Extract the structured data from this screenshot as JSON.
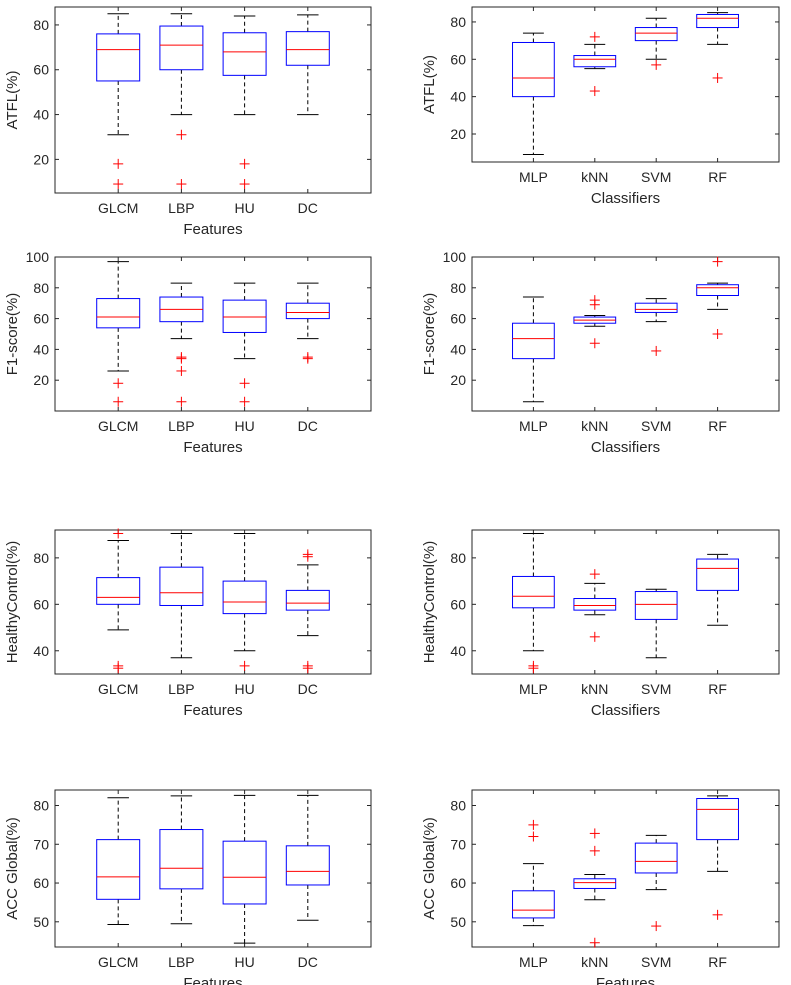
{
  "chart_data": [
    {
      "type": "box",
      "xlabel": "Features",
      "ylabel": "ATFL(%)",
      "ylim": [
        5,
        88
      ],
      "yticks": [
        20,
        40,
        60,
        80
      ],
      "categories": [
        "GLCM",
        "LBP",
        "HU",
        "DC"
      ],
      "boxes": [
        {
          "whisker_low": 31,
          "q1": 55,
          "median": 69,
          "q3": 76,
          "whisker_high": 85,
          "outliers": [
            18,
            9
          ]
        },
        {
          "whisker_low": 40,
          "q1": 60,
          "median": 71,
          "q3": 79.5,
          "whisker_high": 85,
          "outliers": [
            31,
            9
          ]
        },
        {
          "whisker_low": 40,
          "q1": 57.5,
          "median": 68,
          "q3": 76.5,
          "whisker_high": 84,
          "outliers": [
            18,
            9
          ]
        },
        {
          "whisker_low": 40,
          "q1": 62,
          "median": 69,
          "q3": 77,
          "whisker_high": 84.5,
          "outliers": []
        }
      ]
    },
    {
      "type": "box",
      "xlabel": "Classifiers",
      "ylabel": "ATFL(%)",
      "ylim": [
        5,
        88
      ],
      "yticks": [
        20,
        40,
        60,
        80
      ],
      "categories": [
        "MLP",
        "kNN",
        "SVM",
        "RF"
      ],
      "boxes": [
        {
          "whisker_low": 9,
          "q1": 40,
          "median": 50,
          "q3": 69,
          "whisker_high": 74,
          "outliers": []
        },
        {
          "whisker_low": 55,
          "q1": 56,
          "median": 60,
          "q3": 62,
          "whisker_high": 68,
          "outliers": [
            72,
            43
          ]
        },
        {
          "whisker_low": 60,
          "q1": 70,
          "median": 74,
          "q3": 77,
          "whisker_high": 82,
          "outliers": [
            57
          ]
        },
        {
          "whisker_low": 68,
          "q1": 77,
          "median": 82,
          "q3": 84,
          "whisker_high": 85,
          "outliers": [
            50
          ]
        }
      ]
    },
    {
      "type": "box",
      "xlabel": "Features",
      "ylabel": "F1-score(%)",
      "ylim": [
        0,
        100
      ],
      "yticks": [
        20,
        40,
        60,
        80,
        100
      ],
      "categories": [
        "GLCM",
        "LBP",
        "HU",
        "DC"
      ],
      "boxes": [
        {
          "whisker_low": 26,
          "q1": 54,
          "median": 61,
          "q3": 73,
          "whisker_high": 97,
          "outliers": [
            18,
            6
          ]
        },
        {
          "whisker_low": 47,
          "q1": 58,
          "median": 66,
          "q3": 74,
          "whisker_high": 83,
          "outliers": [
            35,
            34,
            26,
            6
          ]
        },
        {
          "whisker_low": 34,
          "q1": 51,
          "median": 61,
          "q3": 72,
          "whisker_high": 83,
          "outliers": [
            18,
            6
          ]
        },
        {
          "whisker_low": 47,
          "q1": 60,
          "median": 64,
          "q3": 70,
          "whisker_high": 83,
          "outliers": [
            35,
            34
          ]
        }
      ]
    },
    {
      "type": "box",
      "xlabel": "Classifiers",
      "ylabel": "F1-score(%)",
      "ylim": [
        0,
        100
      ],
      "yticks": [
        20,
        40,
        60,
        80,
        100
      ],
      "categories": [
        "MLP",
        "kNN",
        "SVM",
        "RF"
      ],
      "boxes": [
        {
          "whisker_low": 6,
          "q1": 34,
          "median": 47,
          "q3": 57,
          "whisker_high": 74,
          "outliers": []
        },
        {
          "whisker_low": 55,
          "q1": 57,
          "median": 59,
          "q3": 61,
          "whisker_high": 62,
          "outliers": [
            72,
            69,
            44
          ]
        },
        {
          "whisker_low": 58,
          "q1": 64,
          "median": 66,
          "q3": 70,
          "whisker_high": 73,
          "outliers": [
            39
          ]
        },
        {
          "whisker_low": 66,
          "q1": 75,
          "median": 80,
          "q3": 82,
          "whisker_high": 83,
          "outliers": [
            97,
            50
          ]
        }
      ]
    },
    {
      "type": "box",
      "xlabel": "Features",
      "ylabel": "HealthyControl(%)",
      "ylim": [
        30,
        92
      ],
      "yticks": [
        40,
        60,
        80
      ],
      "categories": [
        "GLCM",
        "LBP",
        "HU",
        "DC"
      ],
      "boxes": [
        {
          "whisker_low": 49,
          "q1": 60,
          "median": 63,
          "q3": 71.5,
          "whisker_high": 87.5,
          "outliers": [
            90.5,
            33.5,
            32.5
          ]
        },
        {
          "whisker_low": 37,
          "q1": 59.5,
          "median": 65,
          "q3": 76,
          "whisker_high": 90.5,
          "outliers": []
        },
        {
          "whisker_low": 40,
          "q1": 56,
          "median": 61,
          "q3": 70,
          "whisker_high": 90.5,
          "outliers": [
            33.5
          ]
        },
        {
          "whisker_low": 46.5,
          "q1": 57.5,
          "median": 60.5,
          "q3": 66,
          "whisker_high": 77,
          "outliers": [
            81.5,
            80.5,
            33.5,
            32.5
          ]
        }
      ]
    },
    {
      "type": "box",
      "xlabel": "Classifiers",
      "ylabel": "HealthyControl(%)",
      "ylim": [
        30,
        92
      ],
      "yticks": [
        40,
        60,
        80
      ],
      "categories": [
        "MLP",
        "kNN",
        "SVM",
        "RF"
      ],
      "boxes": [
        {
          "whisker_low": 40,
          "q1": 58.5,
          "median": 63.5,
          "q3": 72,
          "whisker_high": 90.5,
          "outliers": [
            33.5,
            32.5
          ]
        },
        {
          "whisker_low": 55.5,
          "q1": 57.5,
          "median": 59.5,
          "q3": 62.5,
          "whisker_high": 69,
          "outliers": [
            73,
            46
          ]
        },
        {
          "whisker_low": 37,
          "q1": 53.5,
          "median": 60,
          "q3": 65.5,
          "whisker_high": 66.5,
          "outliers": []
        },
        {
          "whisker_low": 51,
          "q1": 66,
          "median": 75.5,
          "q3": 79.5,
          "whisker_high": 81.5,
          "outliers": []
        }
      ]
    },
    {
      "type": "box",
      "xlabel": "Features",
      "ylabel": "ACC Global(%)",
      "ylim": [
        43.5,
        84
      ],
      "yticks": [
        50,
        60,
        70,
        80
      ],
      "categories": [
        "GLCM",
        "LBP",
        "HU",
        "DC"
      ],
      "boxes": [
        {
          "whisker_low": 49.3,
          "q1": 55.8,
          "median": 61.6,
          "q3": 71.2,
          "whisker_high": 82,
          "outliers": []
        },
        {
          "whisker_low": 49.5,
          "q1": 58.5,
          "median": 63.8,
          "q3": 73.8,
          "whisker_high": 82.5,
          "outliers": []
        },
        {
          "whisker_low": 44.5,
          "q1": 54.6,
          "median": 61.5,
          "q3": 70.8,
          "whisker_high": 82.6,
          "outliers": []
        },
        {
          "whisker_low": 50.4,
          "q1": 59.5,
          "median": 63,
          "q3": 69.6,
          "whisker_high": 82.6,
          "outliers": []
        }
      ]
    },
    {
      "type": "box",
      "xlabel": "Features",
      "ylabel": "ACC Global(%)",
      "ylim": [
        43.5,
        84
      ],
      "yticks": [
        50,
        60,
        70,
        80
      ],
      "categories": [
        "MLP",
        "kNN",
        "SVM",
        "RF"
      ],
      "boxes": [
        {
          "whisker_low": 49,
          "q1": 51,
          "median": 53,
          "q3": 58,
          "whisker_high": 65,
          "outliers": [
            75,
            72
          ]
        },
        {
          "whisker_low": 55.7,
          "q1": 58.6,
          "median": 60.1,
          "q3": 61.1,
          "whisker_high": 62.2,
          "outliers": [
            72.8,
            68.3,
            44.6
          ]
        },
        {
          "whisker_low": 58.3,
          "q1": 62.6,
          "median": 65.6,
          "q3": 70.3,
          "whisker_high": 72.3,
          "outliers": [
            48.9
          ]
        },
        {
          "whisker_low": 63,
          "q1": 71.2,
          "median": 79,
          "q3": 81.8,
          "whisker_high": 82.5,
          "outliers": [
            51.8
          ]
        }
      ]
    }
  ],
  "colors": {
    "box": "#0000ff",
    "median": "#ff0000",
    "outlier": "#ff0000",
    "whisker": "#000000",
    "axes": "#262626"
  }
}
